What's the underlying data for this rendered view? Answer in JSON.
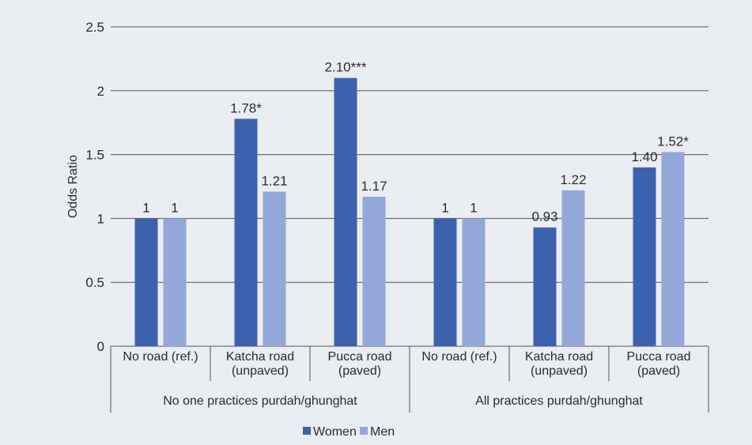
{
  "chart_data": {
    "type": "bar",
    "ylabel": "Odds Ratio",
    "ylim": [
      0,
      2.5
    ],
    "yticks": [
      "0",
      "0.5",
      "1",
      "1.5",
      "2",
      "2.5"
    ],
    "categories": [
      [
        "No road (ref.)"
      ],
      [
        "Katcha road",
        "(unpaved)"
      ],
      [
        "Pucca road",
        "(paved)"
      ],
      [
        "No road (ref.)"
      ],
      [
        "Katcha road",
        "(unpaved)"
      ],
      [
        "Pucca road",
        "(paved)"
      ]
    ],
    "groups": [
      {
        "label": "No one practices purdah/ghunghat",
        "span": 3
      },
      {
        "label": "All practices purdah/ghunghat",
        "span": 3
      }
    ],
    "series": [
      {
        "name": "Women",
        "color": "#3c62ad",
        "values": [
          1,
          1.78,
          2.1,
          1,
          0.93,
          1.4
        ],
        "labels": [
          "1",
          "1.78*",
          "2.10***",
          "1",
          "0.93",
          "1.40"
        ]
      },
      {
        "name": "Men",
        "color": "#93a8d8",
        "values": [
          1,
          1.21,
          1.17,
          1,
          1.22,
          1.52
        ],
        "labels": [
          "1",
          "1.21",
          "1.17",
          "1",
          "1.22",
          "1.52*"
        ]
      }
    ],
    "grid": true,
    "legend_position": "bottom-center"
  }
}
